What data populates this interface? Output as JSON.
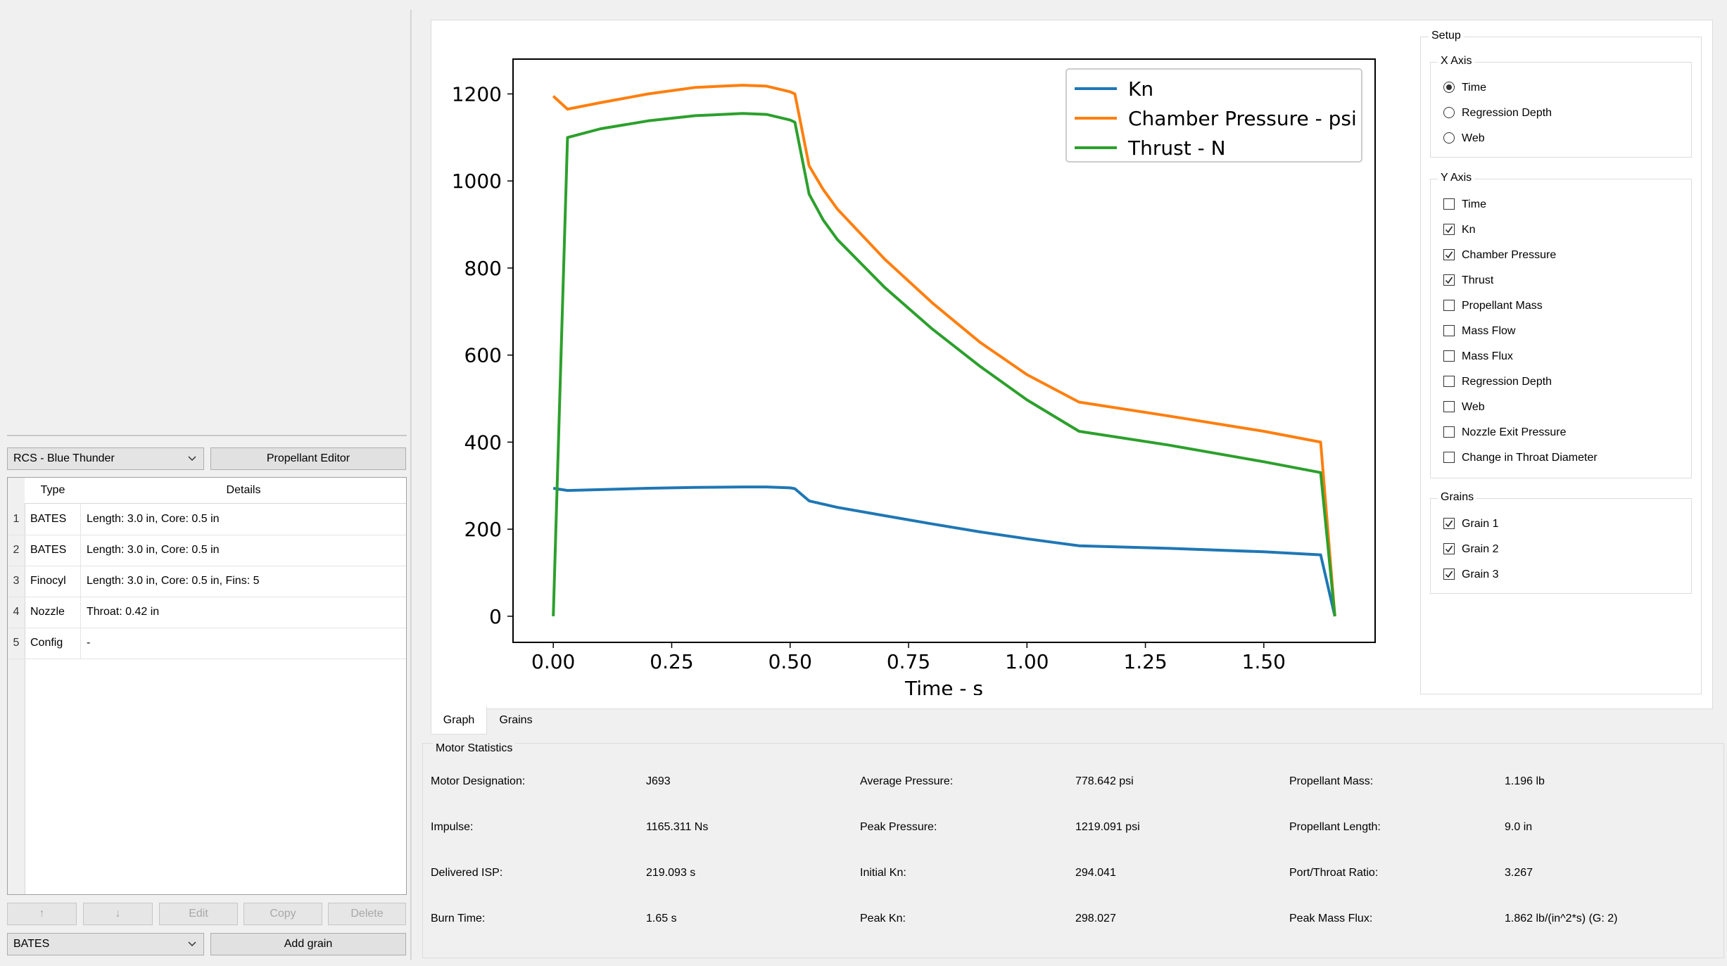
{
  "left": {
    "propellant_select": "RCS - Blue Thunder",
    "propellant_editor_label": "Propellant Editor",
    "table": {
      "headers": [
        "Type",
        "Details"
      ],
      "rows": [
        {
          "num": "1",
          "type": "BATES",
          "details": "Length: 3.0 in, Core: 0.5 in"
        },
        {
          "num": "2",
          "type": "BATES",
          "details": "Length: 3.0 in, Core: 0.5 in"
        },
        {
          "num": "3",
          "type": "Finocyl",
          "details": "Length: 3.0 in, Core: 0.5 in, Fins: 5"
        },
        {
          "num": "4",
          "type": "Nozzle",
          "details": "Throat: 0.42 in"
        },
        {
          "num": "5",
          "type": "Config",
          "details": "-"
        }
      ]
    },
    "buttons": {
      "up": "↑",
      "down": "↓",
      "edit": "Edit",
      "copy": "Copy",
      "delete": "Delete"
    },
    "grain_type_select": "BATES",
    "add_grain_label": "Add grain"
  },
  "tabs": [
    {
      "label": "Graph",
      "active": true
    },
    {
      "label": "Grains",
      "active": false
    }
  ],
  "chart_data": {
    "type": "line",
    "xlabel": "Time - s",
    "ylabel": "",
    "xlim": [
      -0.085,
      1.735
    ],
    "ylim": [
      -60,
      1280
    ],
    "xticks": [
      "0.00",
      "0.25",
      "0.50",
      "0.75",
      "1.00",
      "1.25",
      "1.50"
    ],
    "yticks": [
      "0",
      "200",
      "400",
      "600",
      "800",
      "1000",
      "1200"
    ],
    "legend_position": "top-right",
    "grid": false,
    "series": [
      {
        "name": "Kn",
        "color": "#1f77b4",
        "x": [
          0.0,
          0.03,
          0.1,
          0.2,
          0.3,
          0.4,
          0.45,
          0.5,
          0.51,
          0.54,
          0.6,
          0.7,
          0.8,
          0.9,
          1.0,
          1.11,
          1.3,
          1.5,
          1.62,
          1.65
        ],
        "y": [
          294,
          289,
          291,
          294,
          296,
          297,
          297,
          295,
          293,
          265,
          250,
          231,
          212,
          194,
          178,
          162,
          156,
          148,
          141,
          0
        ]
      },
      {
        "name": "Chamber Pressure - psi",
        "color": "#ff7f0e",
        "x": [
          0.0,
          0.03,
          0.1,
          0.2,
          0.3,
          0.4,
          0.45,
          0.5,
          0.51,
          0.54,
          0.57,
          0.6,
          0.7,
          0.8,
          0.9,
          1.0,
          1.11,
          1.3,
          1.5,
          1.62,
          1.65
        ],
        "y": [
          1195,
          1165,
          1180,
          1200,
          1215,
          1220,
          1218,
          1205,
          1200,
          1035,
          980,
          935,
          820,
          720,
          630,
          555,
          492,
          460,
          425,
          400,
          0
        ]
      },
      {
        "name": "Thrust - N",
        "color": "#2ca02c",
        "x": [
          0.0,
          0.03,
          0.1,
          0.2,
          0.3,
          0.4,
          0.45,
          0.5,
          0.51,
          0.54,
          0.57,
          0.6,
          0.7,
          0.8,
          0.9,
          1.0,
          1.11,
          1.3,
          1.5,
          1.62,
          1.65
        ],
        "y": [
          0,
          1100,
          1120,
          1138,
          1150,
          1155,
          1153,
          1140,
          1135,
          970,
          910,
          865,
          755,
          660,
          575,
          497,
          425,
          393,
          355,
          330,
          0
        ]
      }
    ]
  },
  "setup": {
    "title": "Setup",
    "x_axis": {
      "title": "X Axis",
      "options": [
        {
          "label": "Time",
          "selected": true
        },
        {
          "label": "Regression Depth",
          "selected": false
        },
        {
          "label": "Web",
          "selected": false
        }
      ]
    },
    "y_axis": {
      "title": "Y Axis",
      "options": [
        {
          "label": "Time",
          "checked": false
        },
        {
          "label": "Kn",
          "checked": true
        },
        {
          "label": "Chamber Pressure",
          "checked": true
        },
        {
          "label": "Thrust",
          "checked": true
        },
        {
          "label": "Propellant Mass",
          "checked": false
        },
        {
          "label": "Mass Flow",
          "checked": false
        },
        {
          "label": "Mass Flux",
          "checked": false
        },
        {
          "label": "Regression Depth",
          "checked": false
        },
        {
          "label": "Web",
          "checked": false
        },
        {
          "label": "Nozzle Exit Pressure",
          "checked": false
        },
        {
          "label": "Change in Throat Diameter",
          "checked": false
        }
      ]
    },
    "grains": {
      "title": "Grains",
      "options": [
        {
          "label": "Grain 1",
          "checked": true
        },
        {
          "label": "Grain 2",
          "checked": true
        },
        {
          "label": "Grain 3",
          "checked": true
        }
      ]
    }
  },
  "stats": {
    "title": "Motor Statistics",
    "items": [
      {
        "label": "Motor Designation:",
        "value": "J693"
      },
      {
        "label": "Impulse:",
        "value": "1165.311 Ns"
      },
      {
        "label": "Delivered ISP:",
        "value": "219.093 s"
      },
      {
        "label": "Burn Time:",
        "value": "1.65 s"
      },
      {
        "label": "Average Pressure:",
        "value": "778.642 psi"
      },
      {
        "label": "Peak Pressure:",
        "value": "1219.091 psi"
      },
      {
        "label": "Initial Kn:",
        "value": "294.041"
      },
      {
        "label": "Peak Kn:",
        "value": "298.027"
      },
      {
        "label": "Propellant Mass:",
        "value": "1.196 lb"
      },
      {
        "label": "Propellant Length:",
        "value": "9.0 in"
      },
      {
        "label": "Port/Throat Ratio:",
        "value": "3.267"
      },
      {
        "label": "Peak Mass Flux:",
        "value": "1.862 lb/(in^2*s) (G: 2)"
      }
    ]
  }
}
